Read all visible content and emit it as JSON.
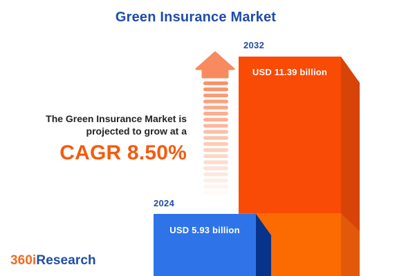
{
  "title": "Green Insurance Market",
  "description": {
    "line1": "The Green Insurance Market is",
    "line2": "projected to grow at a",
    "cagr_text": "CAGR 8.50%"
  },
  "chart_data": {
    "type": "bar",
    "title": "Green Insurance Market",
    "categories": [
      "2024",
      "2032"
    ],
    "values": [
      5.93,
      11.39
    ],
    "unit": "USD billion",
    "value_labels": [
      "USD 5.93 billion",
      "USD 11.39 billion"
    ],
    "cagr_percent": 8.5,
    "xlabel": "",
    "ylabel": "",
    "legend": "none",
    "grid": false,
    "orientation": "vertical",
    "style": "3d-infographic"
  },
  "bars": [
    {
      "year": "2024",
      "label": "USD 5.93 billion",
      "front_color": "#2e74e8",
      "side_color": "#08338a"
    },
    {
      "year": "2032",
      "label": "USD 11.39 billion",
      "front_color": "#f94a06",
      "front_color_lower": "#fb6b02",
      "side_color": "#d84307",
      "side_color_lower": "#e2590b"
    }
  ],
  "logo": {
    "part1": "360i",
    "part2": "Research"
  },
  "colors": {
    "title_blue": "#1f4ca8",
    "accent_orange": "#f35b0f",
    "arrow_orange": "#f78b5f",
    "text_dark": "#222222",
    "background": "#ffffff"
  }
}
